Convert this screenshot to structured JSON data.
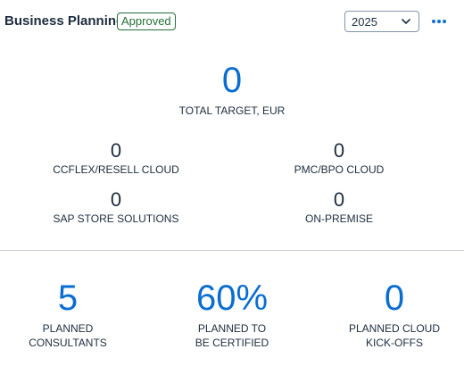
{
  "header": {
    "title": "Business Planning",
    "status_badge": "Approved",
    "year_select": {
      "value": "2025",
      "icon": "chevron-down-icon"
    },
    "more_icon": "more-horizontal-icon"
  },
  "total": {
    "value": "0",
    "label": "TOTAL TARGET, EUR"
  },
  "segments": [
    {
      "value": "0",
      "label": "CCFLEX/RESELL CLOUD"
    },
    {
      "value": "0",
      "label": "PMC/BPO CLOUD"
    },
    {
      "value": "0",
      "label": "SAP STORE SOLUTIONS"
    },
    {
      "value": "0",
      "label": "ON-PREMISE"
    }
  ],
  "bottom_kpis": [
    {
      "value": "5",
      "label_line1": "PLANNED",
      "label_line2": "CONSULTANTS"
    },
    {
      "value": "60%",
      "label_line1": "PLANNED TO",
      "label_line2": "BE CERTIFIED"
    },
    {
      "value": "0",
      "label_line1": "PLANNED CLOUD",
      "label_line2": "KICK-OFFS"
    }
  ],
  "colors": {
    "accent": "#0a6ed1",
    "text": "#1d2d3e",
    "positive": "#256f3a",
    "divider": "#c9cfd6"
  }
}
